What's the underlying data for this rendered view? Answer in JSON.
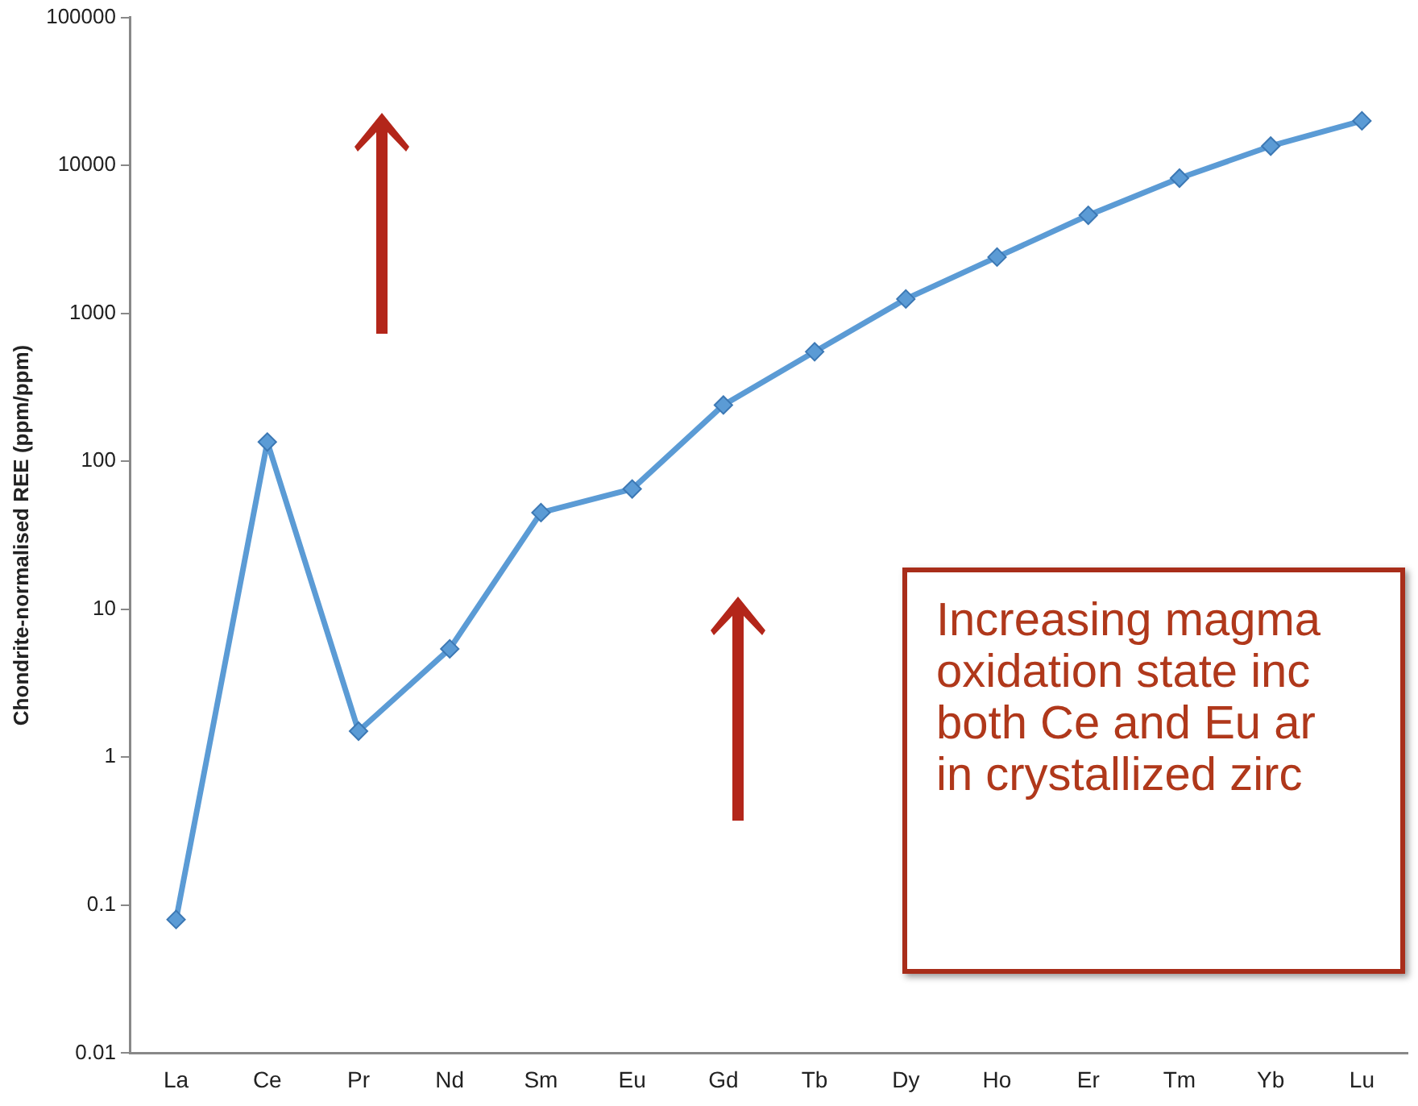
{
  "chart_data": {
    "type": "line",
    "ylabel": "Chondrite-normalised REE (ppm/ppm)",
    "categories": [
      "La",
      "Ce",
      "Pr",
      "Nd",
      "Sm",
      "Eu",
      "Gd",
      "Tb",
      "Dy",
      "Ho",
      "Er",
      "Tm",
      "Yb",
      "Lu"
    ],
    "series": [
      {
        "color": "#5b9bd5",
        "values": [
          0.08,
          135,
          1.5,
          5.4,
          45,
          65,
          240,
          550,
          1250,
          2400,
          4600,
          8200,
          13500,
          20000
        ]
      }
    ],
    "log": true,
    "ylim": [
      0.01,
      100000
    ],
    "yticks": [
      {
        "value": 0.01,
        "label": "0.01"
      },
      {
        "value": 0.1,
        "label": "0.1"
      },
      {
        "value": 1,
        "label": "1"
      },
      {
        "value": 10,
        "label": "10"
      },
      {
        "value": 100,
        "label": "100"
      },
      {
        "value": 1000,
        "label": "1000"
      },
      {
        "value": 10000,
        "label": "10000"
      },
      {
        "value": 100000,
        "label": "100000"
      }
    ],
    "grid": false,
    "legend": false,
    "marker": "diamond",
    "line_style": "solid",
    "annotations": [
      "Increasing magma\noxidation state inc\nboth Ce and Eu ar\nin crystallized zirc"
    ]
  }
}
